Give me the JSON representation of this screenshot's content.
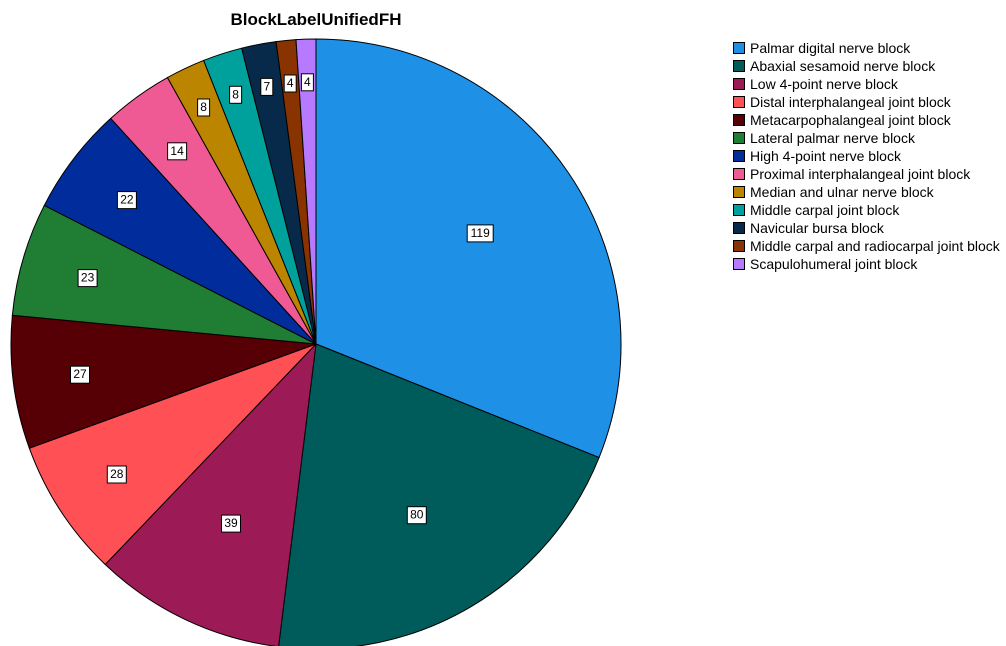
{
  "chart_data": {
    "type": "pie",
    "title": "BlockLabelUnifiedFH",
    "legend_position": "right",
    "slice_outline": "#000000",
    "slices": [
      {
        "label": "Palmar digital nerve block",
        "value": 119,
        "color": "#1e90e6"
      },
      {
        "label": "Abaxial sesamoid nerve block",
        "value": 80,
        "color": "#005b5b"
      },
      {
        "label": "Low 4-point nerve block",
        "value": 39,
        "color": "#9c1a55"
      },
      {
        "label": "Distal interphalangeal joint block",
        "value": 28,
        "color": "#ff5055"
      },
      {
        "label": "Metacarpophalangeal joint block",
        "value": 27,
        "color": "#560006"
      },
      {
        "label": "Lateral palmar nerve block",
        "value": 23,
        "color": "#1f7e33"
      },
      {
        "label": "High 4-point nerve block",
        "value": 22,
        "color": "#002c9c"
      },
      {
        "label": "Proximal interphalangeal joint block",
        "value": 14,
        "color": "#ef5a94"
      },
      {
        "label": "Median and ulnar nerve block",
        "value": 8,
        "color": "#bb8500"
      },
      {
        "label": "Middle carpal joint block",
        "value": 8,
        "color": "#00a19c"
      },
      {
        "label": "Navicular bursa block",
        "value": 7,
        "color": "#082a4a"
      },
      {
        "label": "Middle carpal and radiocarpal joint block",
        "value": 4,
        "color": "#893400"
      },
      {
        "label": "Scapulohumeral joint block",
        "value": 4,
        "color": "#b77aff"
      }
    ]
  }
}
